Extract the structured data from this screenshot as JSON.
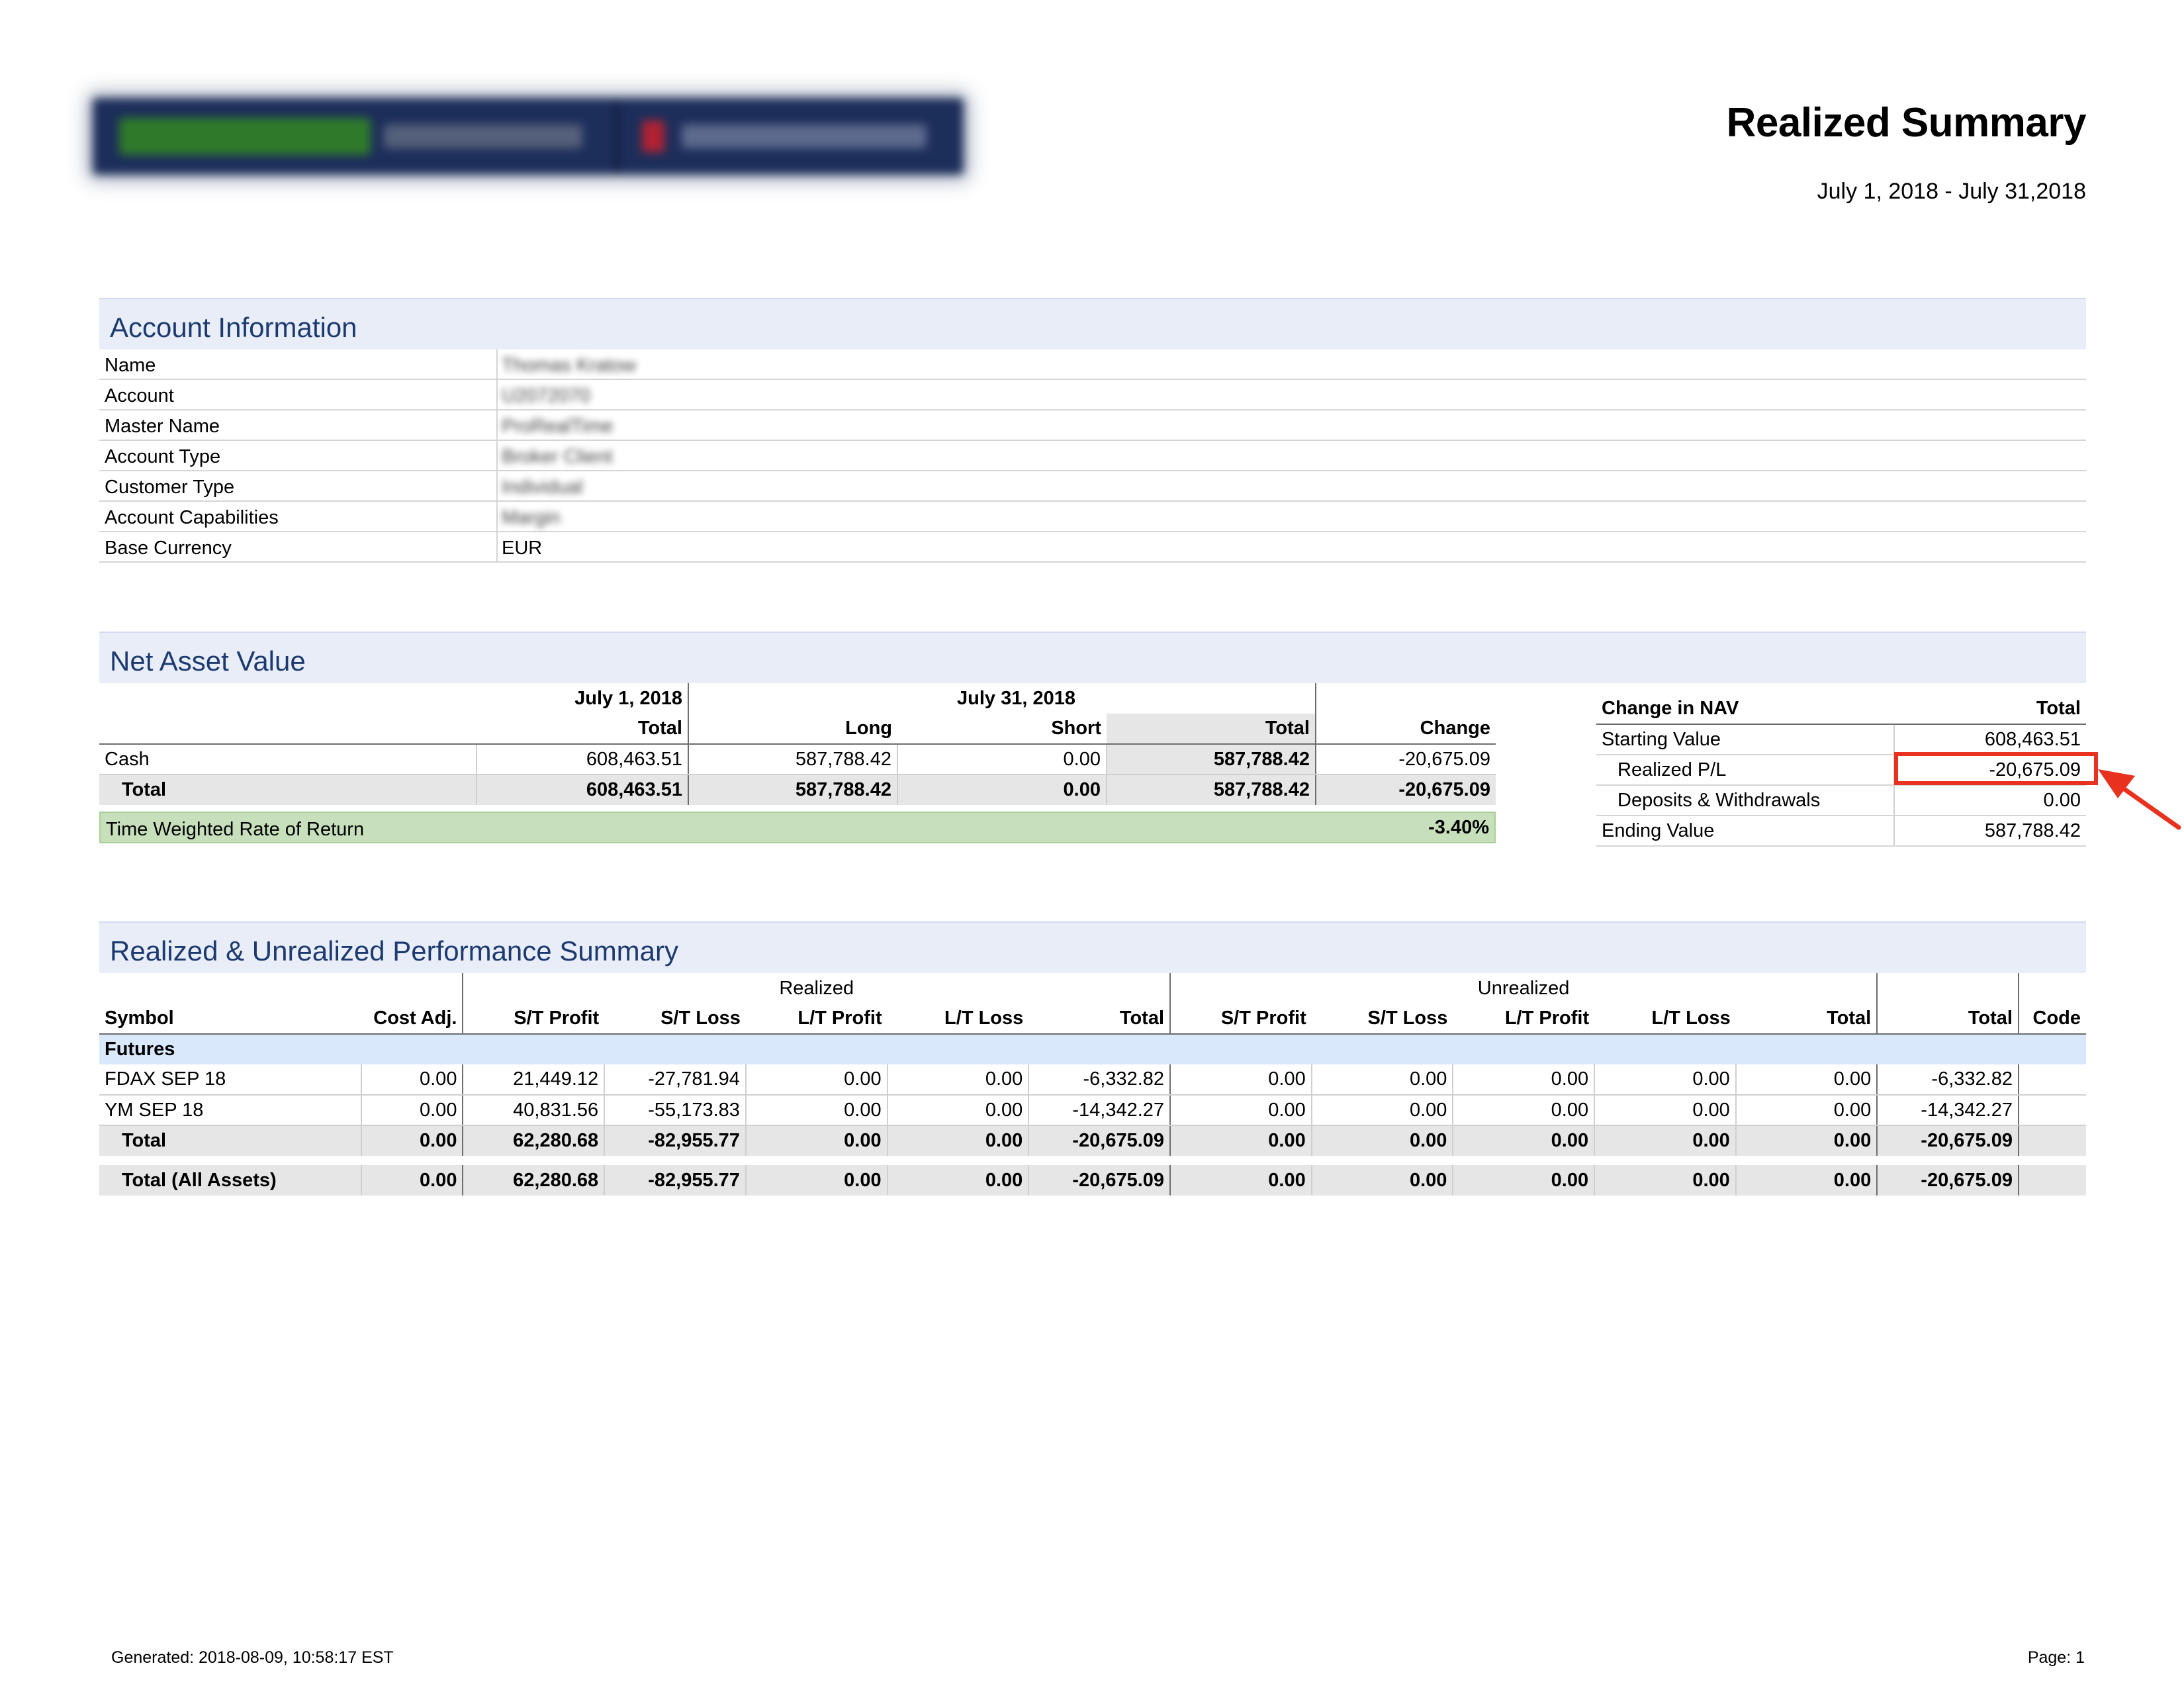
{
  "header": {
    "title": "Realized Summary",
    "date_range": "July 1, 2018 - July 31,2018"
  },
  "account_info": {
    "title": "Account Information",
    "rows": [
      {
        "label": "Name",
        "value": "Thomas Kratow"
      },
      {
        "label": "Account",
        "value": "U2072070"
      },
      {
        "label": "Master Name",
        "value": "ProRealTime"
      },
      {
        "label": "Account Type",
        "value": "Broker Client"
      },
      {
        "label": "Customer Type",
        "value": "Individual"
      },
      {
        "label": "Account Capabilities",
        "value": "Margin"
      },
      {
        "label": "Base Currency",
        "value": "EUR"
      }
    ]
  },
  "nav": {
    "title": "Net Asset Value",
    "date1": "July 1, 2018",
    "date2": "July 31, 2018",
    "columns": [
      "Total",
      "Long",
      "Short",
      "Total",
      "Change"
    ],
    "rows": [
      {
        "label": "Cash",
        "values": [
          "608,463.51",
          "587,788.42",
          "0.00",
          "587,788.42",
          "-20,675.09"
        ]
      },
      {
        "label": "Total",
        "values": [
          "608,463.51",
          "587,788.42",
          "0.00",
          "587,788.42",
          "-20,675.09"
        ]
      }
    ],
    "twrr_label": "Time Weighted Rate of Return",
    "twrr_value": "-3.40%"
  },
  "change_in_nav": {
    "header_label": "Change in NAV",
    "header_total": "Total",
    "rows": [
      {
        "label": "Starting Value",
        "value": "608,463.51"
      },
      {
        "label": "Realized P/L",
        "value": "-20,675.09"
      },
      {
        "label": "Deposits & Withdrawals",
        "value": "0.00"
      },
      {
        "label": "Ending Value",
        "value": "587,788.42"
      }
    ],
    "highlight_color": "#e8321f"
  },
  "performance": {
    "title": "Realized & Unrealized Performance Summary",
    "group_realized": "Realized",
    "group_unrealized": "Unrealized",
    "columns": [
      "Symbol",
      "Cost Adj.",
      "S/T Profit",
      "S/T Loss",
      "L/T Profit",
      "L/T Loss",
      "Total",
      "S/T Profit",
      "S/T Loss",
      "L/T Profit",
      "L/T Loss",
      "Total",
      "Total",
      "Code"
    ],
    "category": "Futures",
    "rows": [
      {
        "symbol": "FDAX SEP 18",
        "values": [
          "0.00",
          "21,449.12",
          "-27,781.94",
          "0.00",
          "0.00",
          "-6,332.82",
          "0.00",
          "0.00",
          "0.00",
          "0.00",
          "0.00",
          "-6,332.82",
          ""
        ]
      },
      {
        "symbol": "YM SEP 18",
        "values": [
          "0.00",
          "40,831.56",
          "-55,173.83",
          "0.00",
          "0.00",
          "-14,342.27",
          "0.00",
          "0.00",
          "0.00",
          "0.00",
          "0.00",
          "-14,342.27",
          ""
        ]
      },
      {
        "symbol": "Total",
        "values": [
          "0.00",
          "62,280.68",
          "-82,955.77",
          "0.00",
          "0.00",
          "-20,675.09",
          "0.00",
          "0.00",
          "0.00",
          "0.00",
          "0.00",
          "-20,675.09",
          ""
        ]
      },
      {
        "symbol": "Total (All Assets)",
        "values": [
          "0.00",
          "62,280.68",
          "-82,955.77",
          "0.00",
          "0.00",
          "-20,675.09",
          "0.00",
          "0.00",
          "0.00",
          "0.00",
          "0.00",
          "-20,675.09",
          ""
        ]
      }
    ]
  },
  "footer": {
    "generated": "Generated: 2018-08-09, 10:58:17 EST",
    "page": "Page: 1"
  }
}
